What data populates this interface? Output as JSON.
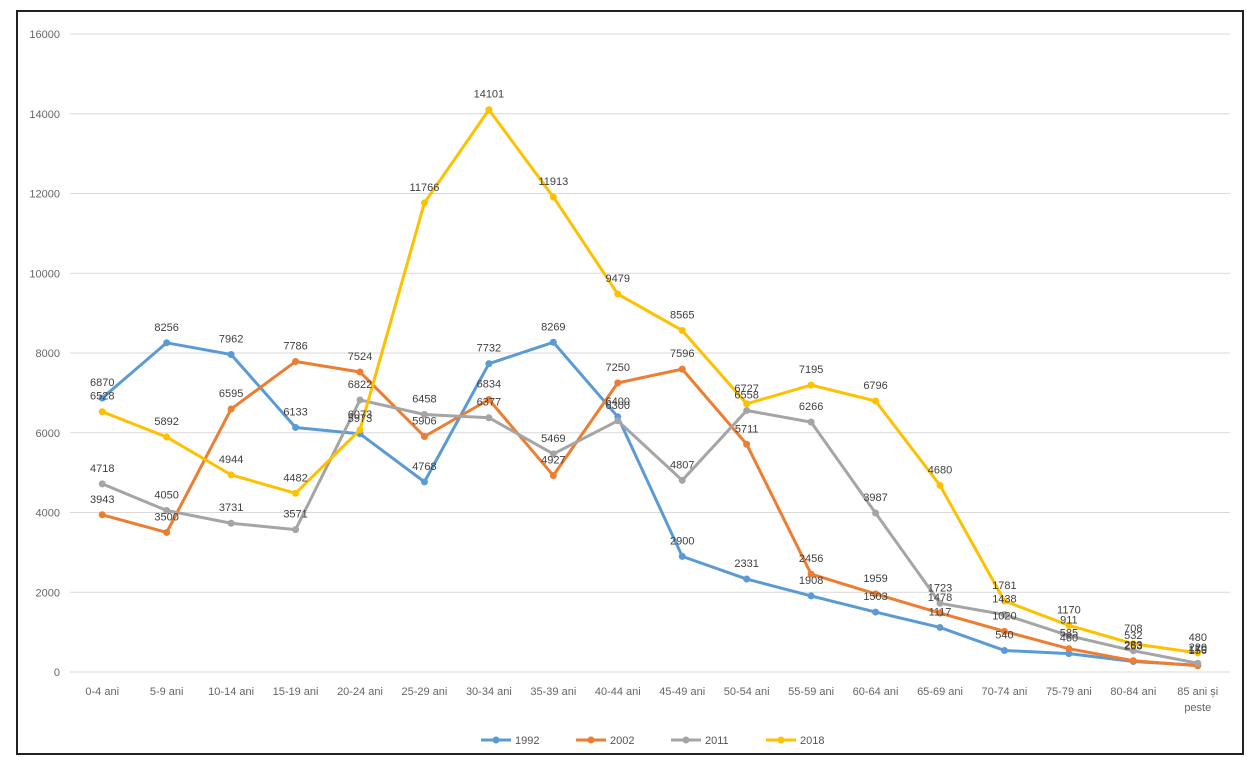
{
  "chart_data": {
    "type": "line",
    "title": "",
    "xlabel": "",
    "ylabel": "",
    "ylim": [
      0,
      16000
    ],
    "yticks": [
      0,
      2000,
      4000,
      6000,
      8000,
      10000,
      12000,
      14000,
      16000
    ],
    "grid": true,
    "legend_position": "bottom",
    "categories": [
      [
        "0-4 ani"
      ],
      [
        "5-9 ani"
      ],
      [
        "10-14 ani"
      ],
      [
        "15-19 ani"
      ],
      [
        "20-24 ani"
      ],
      [
        "25-29 ani"
      ],
      [
        "30-34 ani"
      ],
      [
        "35-39 ani"
      ],
      [
        "40-44 ani"
      ],
      [
        "45-49 ani"
      ],
      [
        "50-54 ani"
      ],
      [
        "55-59 ani"
      ],
      [
        "60-64 ani"
      ],
      [
        "65-69 ani"
      ],
      [
        "70-74 ani"
      ],
      [
        "75-79 ani"
      ],
      [
        "80-84 ani"
      ],
      [
        "85 ani și",
        "peste"
      ]
    ],
    "series": [
      {
        "name": "1992",
        "color": "#5B9BD5",
        "values": [
          6870,
          8256,
          7962,
          6133,
          5973,
          4768,
          7732,
          8269,
          6400,
          2900,
          2331,
          1908,
          1503,
          1117,
          540,
          460,
          263,
          170
        ]
      },
      {
        "name": "2002",
        "color": "#ED7D31",
        "values": [
          3943,
          3500,
          6595,
          7786,
          7524,
          5906,
          6834,
          4927,
          7250,
          7596,
          5711,
          2456,
          1959,
          1478,
          1020,
          585,
          283,
          156
        ]
      },
      {
        "name": "2011",
        "color": "#A5A5A5",
        "values": [
          4718,
          4050,
          3731,
          3571,
          6822,
          6458,
          6377,
          5469,
          6300,
          4807,
          6558,
          6266,
          3987,
          1723,
          1438,
          911,
          532,
          220
        ]
      },
      {
        "name": "2018",
        "color": "#FFC000",
        "values": [
          6528,
          5892,
          4944,
          4482,
          6073,
          11766,
          14101,
          11913,
          9479,
          8565,
          6727,
          7195,
          6796,
          4680,
          1781,
          1170,
          708,
          480
        ]
      }
    ]
  }
}
